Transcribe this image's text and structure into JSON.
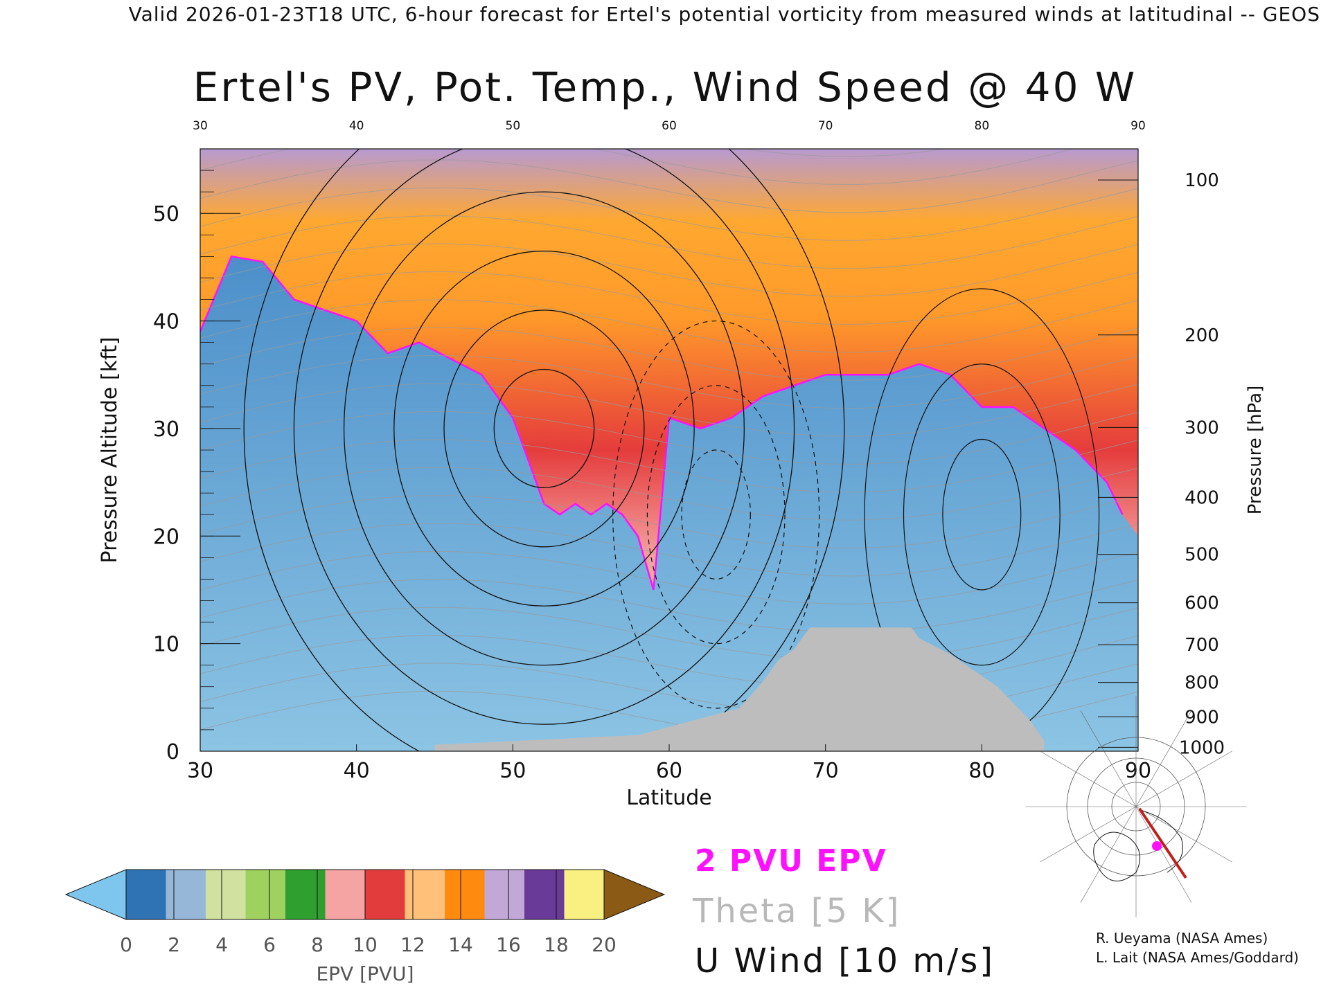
{
  "header": "Valid 2026-01-23T18 UTC, 6-hour forecast for Ertel's potential vorticity from measured winds at latitudinal -- GEOS",
  "title": "Ertel's PV, Pot. Temp., Wind Speed @ 40 W",
  "legend": {
    "pv_line": "2 PVU EPV",
    "theta": "Theta [5 K]",
    "uwind": "U Wind [10 m/s]"
  },
  "colorbar": {
    "label": "EPV [PVU]",
    "ticks": [
      "0",
      "2",
      "4",
      "6",
      "8",
      "10",
      "12",
      "14",
      "16",
      "18",
      "20"
    ],
    "colors": [
      "#7fc6ee",
      "#2f73b4",
      "#96b7d8",
      "#d1e1a0",
      "#9fd15f",
      "#2f9f2f",
      "#f6a3a3",
      "#e23c3c",
      "#ffc07a",
      "#ff8a10",
      "#c2a8d6",
      "#6a3a98",
      "#f8f080",
      "#8b5a14"
    ]
  },
  "credits": [
    "R. Ueyama (NASA Ames)",
    "L. Lait (NASA Ames/Goddard)"
  ],
  "chart_data": {
    "type": "heatmap",
    "title": "Ertel's PV, Pot. Temp., Wind Speed @ 40 W",
    "xlabel": "Latitude",
    "ylabel_left": "Pressure Altitude [kft]",
    "ylabel_right": "Pressure [hPa]",
    "xlim": [
      30,
      90
    ],
    "ylim": [
      0,
      56
    ],
    "x_ticks": [
      30,
      40,
      50,
      60,
      70,
      80,
      90
    ],
    "y_ticks_left": [
      0,
      10,
      20,
      30,
      40,
      50
    ],
    "y_ticks_right": [
      {
        "label": "100",
        "kft": 53.1
      },
      {
        "label": "200",
        "kft": 38.7
      },
      {
        "label": "300",
        "kft": 30.1
      },
      {
        "label": "400",
        "kft": 23.6
      },
      {
        "label": "500",
        "kft": 18.3
      },
      {
        "label": "600",
        "kft": 13.8
      },
      {
        "label": "700",
        "kft": 9.9
      },
      {
        "label": "800",
        "kft": 6.4
      },
      {
        "label": "900",
        "kft": 3.2
      },
      {
        "label": "1000",
        "kft": 0.36
      }
    ],
    "tropopause_2pvu_kft": [
      [
        30,
        39
      ],
      [
        32,
        46
      ],
      [
        34,
        45.5
      ],
      [
        36,
        42
      ],
      [
        38,
        41
      ],
      [
        40,
        40
      ],
      [
        42,
        37
      ],
      [
        44,
        38
      ],
      [
        46,
        36.5
      ],
      [
        48,
        35
      ],
      [
        50,
        31
      ],
      [
        51,
        27
      ],
      [
        52,
        23
      ],
      [
        53,
        22
      ],
      [
        54,
        23
      ],
      [
        55,
        22
      ],
      [
        56,
        23
      ],
      [
        57,
        22
      ],
      [
        58,
        20
      ],
      [
        59,
        15
      ],
      [
        60,
        31
      ],
      [
        62,
        30
      ],
      [
        64,
        31
      ],
      [
        66,
        33
      ],
      [
        68,
        34
      ],
      [
        70,
        35
      ],
      [
        72,
        35
      ],
      [
        74,
        35
      ],
      [
        76,
        36
      ],
      [
        78,
        35
      ],
      [
        80,
        32
      ],
      [
        82,
        32
      ],
      [
        84,
        30
      ],
      [
        86,
        28
      ],
      [
        88,
        25
      ],
      [
        89,
        22
      ]
    ],
    "u_wind_jet_max_core": {
      "lat": 52,
      "kft": 30,
      "speed_ms": 70
    },
    "surface_topography_kft": [
      [
        45,
        0.6
      ],
      [
        58,
        1.5
      ],
      [
        64.5,
        4
      ],
      [
        66,
        6.5
      ],
      [
        67,
        8.5
      ],
      [
        68,
        9.5
      ],
      [
        69,
        11.5
      ],
      [
        75.5,
        11.5
      ],
      [
        76,
        10.5
      ],
      [
        78,
        9
      ],
      [
        79,
        8
      ],
      [
        81,
        6
      ],
      [
        83,
        3
      ],
      [
        84,
        1
      ]
    ],
    "colorbar_range_pvu": [
      0,
      20
    ],
    "colorbar_step_pvu": 1
  }
}
